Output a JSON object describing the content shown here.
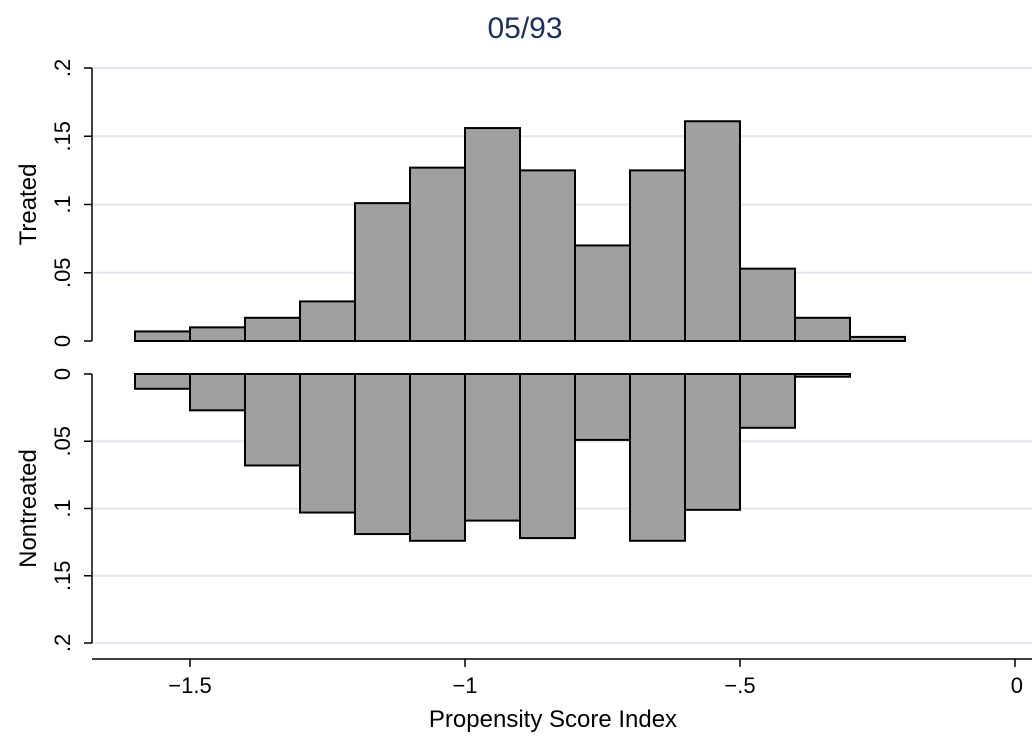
{
  "chart_data": {
    "type": "bar",
    "title": "05/93",
    "xlabel": "Propensity Score Index",
    "xlim": [
      -1.65,
      0
    ],
    "xticks": [
      {
        "value": -1.5,
        "label": "−1.5"
      },
      {
        "value": -1.0,
        "label": "−1"
      },
      {
        "value": -0.5,
        "label": "−.5"
      },
      {
        "value": 0.0,
        "label": "0"
      }
    ],
    "bin_width": 0.1,
    "bin_starts": [
      -1.6,
      -1.5,
      -1.4,
      -1.3,
      -1.2,
      -1.1,
      -1.0,
      -0.9,
      -0.8,
      -0.7,
      -0.6,
      -0.5,
      -0.4,
      -0.3
    ],
    "panels": [
      {
        "ylabel": "Treated",
        "direction": "up",
        "ylim": [
          0,
          0.2
        ],
        "yticks": [
          {
            "value": 0,
            "label": "0"
          },
          {
            "value": 0.05,
            "label": ".05"
          },
          {
            "value": 0.1,
            "label": ".1"
          },
          {
            "value": 0.15,
            "label": ".15"
          },
          {
            "value": 0.2,
            "label": ".2"
          }
        ],
        "values": [
          0.007,
          0.01,
          0.017,
          0.029,
          0.101,
          0.127,
          0.156,
          0.125,
          0.07,
          0.125,
          0.161,
          0.053,
          0.017,
          0.003
        ]
      },
      {
        "ylabel": "Nontreated",
        "direction": "down",
        "ylim": [
          0,
          0.2
        ],
        "yticks": [
          {
            "value": 0,
            "label": "0"
          },
          {
            "value": 0.05,
            "label": ".05"
          },
          {
            "value": 0.1,
            "label": ".1"
          },
          {
            "value": 0.15,
            "label": ".15"
          },
          {
            "value": 0.2,
            "label": ".2"
          }
        ],
        "values": [
          0.011,
          0.027,
          0.068,
          0.103,
          0.119,
          0.124,
          0.109,
          0.122,
          0.049,
          0.124,
          0.101,
          0.04,
          0.002,
          null
        ]
      }
    ],
    "grid": true,
    "legend": "none"
  }
}
